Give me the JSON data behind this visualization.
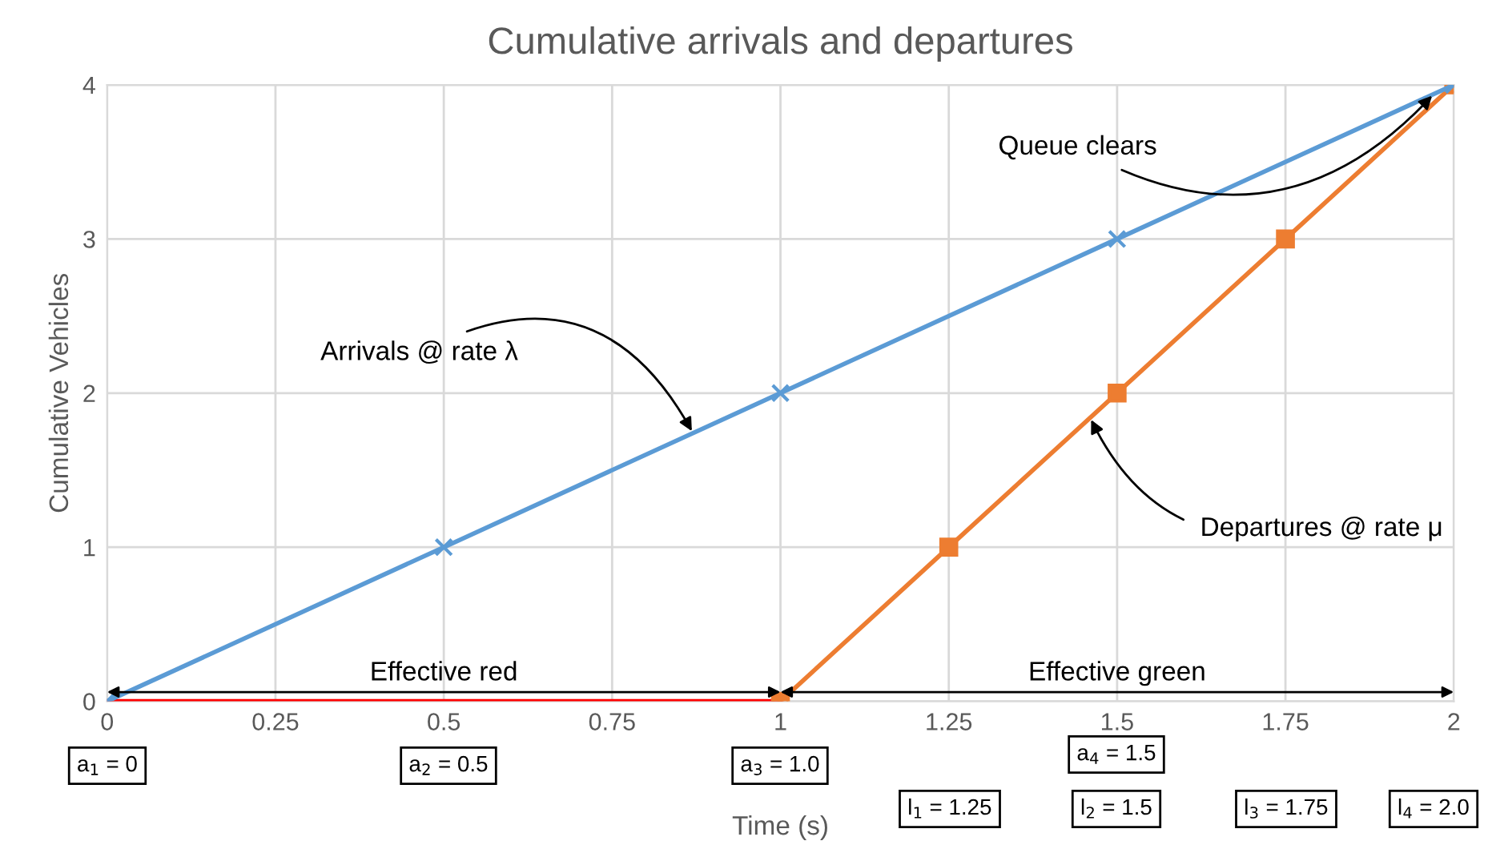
{
  "chart_data": {
    "type": "line",
    "title": "Cumulative arrivals and departures",
    "xlabel": "Time (s)",
    "ylabel": "Cumulative Vehicles",
    "xlim": [
      0,
      2
    ],
    "xticks": [
      0,
      0.25,
      0.5,
      0.75,
      1,
      1.25,
      1.5,
      1.75,
      2
    ],
    "ylim": [
      0,
      4
    ],
    "yticks": [
      0,
      1,
      2,
      3,
      4
    ],
    "grid": true,
    "legend": false,
    "series": [
      {
        "x": [
          0,
          0.5,
          1,
          1.5,
          2
        ],
        "values": [
          0,
          1,
          2,
          3,
          4
        ],
        "color": "#5b9bd5",
        "marker": "cross"
      },
      {
        "x": [
          1,
          1.25,
          1.5,
          1.75,
          2
        ],
        "values": [
          0,
          1,
          2,
          3,
          4
        ],
        "color": "#ed7d31",
        "marker": "square"
      },
      {
        "x": [
          0,
          1
        ],
        "values": [
          0,
          0
        ],
        "color": "#ff0000",
        "marker": "none"
      }
    ],
    "annotations": [
      "Effective red",
      "Effective green",
      {
        "text": "Arrivals @ rate λ",
        "x": 0.87,
        "y": 1.74
      },
      {
        "text": "Departures @ rate μ",
        "x": 1.46,
        "y": 1.84
      },
      {
        "text": "Queue clears",
        "x": 1.97,
        "y": 3.94
      },
      "a$_{1}$ = 0",
      "a$_{2}$ = 0.5",
      "a$_{3}$ = 1.0",
      "a$_{4}$ = 1.5",
      "l$_{1}$ = 1.25",
      "l$_{2}$ = 1.5",
      "l$_{3}$ = 1.75",
      "l$_{4}$ = 2.0"
    ]
  }
}
